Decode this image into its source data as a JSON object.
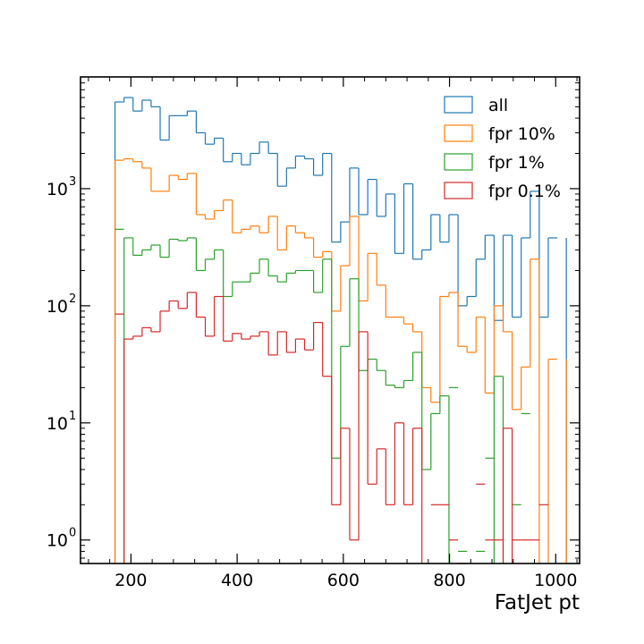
{
  "chart_data": {
    "type": "line",
    "style": "step histogram",
    "xlabel": "FatJet pt",
    "ylabel": "",
    "xlim": [
      105,
      1045
    ],
    "ylim": [
      0.63,
      9000
    ],
    "yscale": "log",
    "legend": "top-right",
    "grid": false,
    "x_ticks": [
      {
        "value": 200,
        "label": "200"
      },
      {
        "value": 400,
        "label": "400"
      },
      {
        "value": 600,
        "label": "600"
      },
      {
        "value": 800,
        "label": "800"
      },
      {
        "value": 1000,
        "label": "1000"
      }
    ],
    "y_ticks": [
      {
        "value": 1,
        "base": "10",
        "exp": "0"
      },
      {
        "value": 10,
        "base": "10",
        "exp": "1"
      },
      {
        "value": 100,
        "base": "10",
        "exp": "2"
      },
      {
        "value": 1000,
        "base": "10",
        "exp": "3"
      }
    ],
    "bin_edges": [
      170,
      187,
      204,
      221,
      238,
      255,
      272,
      289,
      306,
      323,
      340,
      357,
      374,
      391,
      408,
      425,
      442,
      459,
      476,
      493,
      510,
      527,
      544,
      561,
      578,
      595,
      612,
      629,
      646,
      663,
      680,
      697,
      714,
      731,
      748,
      765,
      782,
      799,
      816,
      833,
      850,
      867,
      884,
      901,
      918,
      935,
      952,
      969,
      986,
      1003
    ],
    "series": [
      {
        "name": "all",
        "color": "#1f77b4",
        "values": [
          5500,
          6000,
          4600,
          5700,
          5000,
          2600,
          4200,
          4200,
          4600,
          3000,
          2400,
          2700,
          1700,
          2000,
          1600,
          2000,
          2500,
          2000,
          1050,
          1500,
          1900,
          1800,
          1300,
          2000,
          350,
          520,
          1500,
          600,
          1200,
          580,
          900,
          280,
          1100,
          250,
          300,
          600,
          350,
          600,
          100,
          120,
          250,
          400,
          75,
          400,
          80,
          380,
          950,
          80,
          380
        ],
        "open_ends": []
      },
      {
        "name": "fpr 10%",
        "color": "#ff7f0e",
        "values": [
          1750,
          1800,
          1700,
          1500,
          950,
          950,
          1300,
          1200,
          1350,
          600,
          550,
          650,
          800,
          420,
          450,
          480,
          420,
          580,
          300,
          480,
          420,
          380,
          260,
          290,
          90,
          220,
          580,
          110,
          280,
          150,
          80,
          80,
          70,
          60,
          20,
          15,
          120,
          130,
          45,
          40,
          80,
          18,
          100,
          60,
          13,
          30,
          250,
          null,
          35
        ],
        "open_ends": [
          47
        ]
      },
      {
        "name": "fpr 1%",
        "color": "#2ca02c",
        "values": [
          450,
          380,
          270,
          300,
          330,
          260,
          370,
          360,
          380,
          200,
          250,
          300,
          120,
          160,
          160,
          190,
          250,
          180,
          160,
          190,
          200,
          200,
          130,
          250,
          5,
          45,
          170,
          28,
          35,
          28,
          21,
          20,
          23,
          40,
          4,
          12,
          17,
          20,
          0.8,
          null,
          0.8,
          5,
          25,
          null,
          2,
          12,
          null,
          null,
          null
        ],
        "open_ends": [
          0,
          37,
          38,
          39,
          40,
          41,
          43,
          44,
          45,
          46,
          47,
          48
        ]
      },
      {
        "name": "fpr 0.1%",
        "color": "#d62728",
        "values": [
          85,
          52,
          55,
          65,
          60,
          90,
          110,
          95,
          130,
          80,
          55,
          120,
          50,
          58,
          52,
          55,
          60,
          38,
          60,
          40,
          52,
          42,
          72,
          25,
          2,
          9,
          1,
          60,
          3,
          6,
          2,
          10,
          2,
          9,
          null,
          2,
          2,
          1,
          0.5,
          null,
          3,
          1,
          1,
          9,
          1,
          1,
          1,
          2,
          null
        ],
        "open_ends": [
          0,
          34,
          35,
          36,
          37,
          38,
          39,
          40,
          41,
          42,
          44,
          45,
          46,
          47,
          48
        ]
      }
    ]
  }
}
